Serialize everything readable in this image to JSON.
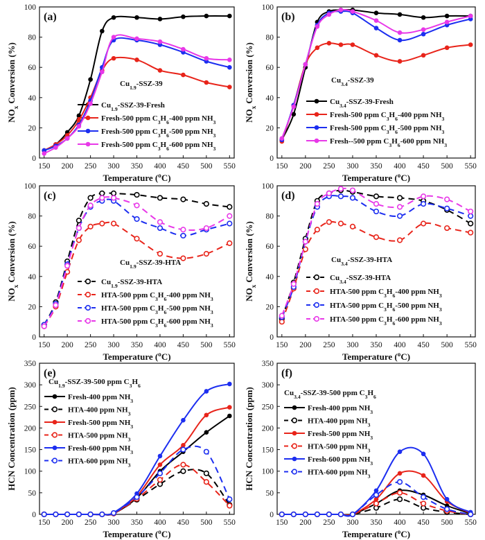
{
  "chart_data": [
    {
      "panel": "(a)",
      "type": "line",
      "annotation": "Cu1.9-SSZ-39",
      "xlabel": "Temperature (oC)",
      "ylabel": "NOx Conversion (%)",
      "xlim": [
        140,
        560
      ],
      "ylim": [
        0,
        100
      ],
      "xticks": [
        150,
        200,
        250,
        300,
        350,
        400,
        450,
        500,
        550
      ],
      "yticks": [
        0,
        20,
        40,
        60,
        80,
        100
      ],
      "legend_position": "bottom-right",
      "series": [
        {
          "name": "Cu1.9-SSZ-39-Fresh",
          "color": "#000000",
          "style": "solid",
          "x": [
            150,
            175,
            200,
            225,
            250,
            275,
            300,
            350,
            400,
            450,
            500,
            550
          ],
          "y": [
            5,
            9,
            17,
            28,
            52,
            84,
            93,
            93,
            92,
            93.5,
            94,
            94
          ]
        },
        {
          "name": "Fresh-500 ppm C3H6-400 ppm NH3",
          "color": "#e8241a",
          "style": "solid",
          "x": [
            150,
            175,
            200,
            225,
            250,
            275,
            300,
            350,
            400,
            450,
            500,
            550
          ],
          "y": [
            5,
            9,
            15,
            25,
            40,
            58,
            66,
            65,
            58,
            55,
            50,
            47
          ]
        },
        {
          "name": "Fresh-500 ppm C3H6-500 ppm NH3",
          "color": "#1c2ef0",
          "style": "solid",
          "x": [
            150,
            175,
            200,
            225,
            250,
            275,
            300,
            350,
            400,
            450,
            500,
            550
          ],
          "y": [
            5,
            8,
            13,
            22,
            38,
            60,
            78,
            78,
            75,
            70,
            64,
            60
          ]
        },
        {
          "name": "Fresh-500 ppm C3H6-600 ppm NH3",
          "color": "#e838e8",
          "style": "solid",
          "x": [
            150,
            175,
            200,
            225,
            250,
            275,
            300,
            350,
            400,
            450,
            500,
            550
          ],
          "y": [
            3,
            7,
            13,
            21,
            36,
            57,
            80,
            79,
            77,
            72,
            66,
            65
          ]
        }
      ]
    },
    {
      "panel": "(b)",
      "type": "line",
      "annotation": "Cu3.4-SSZ-39",
      "xlabel": "Temperature (oC)",
      "ylabel": "NOx Conversion (%)",
      "xlim": [
        140,
        560
      ],
      "ylim": [
        0,
        100
      ],
      "xticks": [
        150,
        200,
        250,
        300,
        350,
        400,
        450,
        500,
        550
      ],
      "yticks": [
        0,
        20,
        40,
        60,
        80,
        100
      ],
      "legend_position": "bottom-right",
      "series": [
        {
          "name": "Cu3.4-SSZ-39-Fresh",
          "color": "#000000",
          "style": "solid",
          "x": [
            150,
            175,
            200,
            225,
            250,
            275,
            300,
            350,
            400,
            450,
            500,
            550
          ],
          "y": [
            12,
            29,
            60,
            90,
            97,
            98,
            98,
            96,
            95,
            93,
            94,
            94
          ]
        },
        {
          "name": "Fresh-500 ppm C3H6-400 ppm NH3",
          "color": "#e8241a",
          "style": "solid",
          "x": [
            150,
            175,
            200,
            225,
            250,
            275,
            300,
            350,
            400,
            450,
            500,
            550
          ],
          "y": [
            11,
            35,
            62,
            73,
            76,
            75,
            75,
            68,
            64,
            68,
            73,
            75
          ]
        },
        {
          "name": "Fresh-500 ppm C3H6-500 ppm NH3",
          "color": "#1c2ef0",
          "style": "solid",
          "x": [
            150,
            175,
            200,
            225,
            250,
            275,
            300,
            350,
            400,
            450,
            500,
            550
          ],
          "y": [
            12,
            35,
            62,
            88,
            96,
            97,
            96,
            86,
            78,
            82,
            88,
            92
          ]
        },
        {
          "name": "Fresh--500 ppm C3H6-600 ppm NH3",
          "color": "#e838e8",
          "style": "solid",
          "x": [
            150,
            175,
            200,
            225,
            250,
            275,
            300,
            350,
            400,
            450,
            500,
            550
          ],
          "y": [
            13,
            34,
            62,
            87,
            95,
            98,
            97,
            91,
            83,
            85,
            90,
            94
          ]
        }
      ]
    },
    {
      "panel": "(c)",
      "type": "line",
      "annotation": "Cu1.9-SSZ-39-HTA",
      "xlabel": "Temperature (oC)",
      "ylabel": "NOx Conversion (%)",
      "xlim": [
        140,
        560
      ],
      "ylim": [
        0,
        100
      ],
      "xticks": [
        150,
        200,
        250,
        300,
        350,
        400,
        450,
        500,
        550
      ],
      "yticks": [
        0,
        20,
        40,
        60,
        80,
        100
      ],
      "legend_position": "bottom-right",
      "series": [
        {
          "name": "Cu1.9-SSZ-39-HTA",
          "color": "#000000",
          "style": "dashed",
          "x": [
            150,
            175,
            200,
            225,
            250,
            275,
            300,
            350,
            400,
            450,
            500,
            550
          ],
          "y": [
            8,
            23,
            50,
            77,
            92,
            95,
            95,
            94,
            92,
            91,
            88,
            86
          ]
        },
        {
          "name": "HTA-500 ppm C3H6-400 ppm NH3",
          "color": "#e8241a",
          "style": "dashed",
          "x": [
            150,
            175,
            200,
            225,
            250,
            275,
            300,
            350,
            400,
            450,
            500,
            550
          ],
          "y": [
            7,
            20,
            43,
            64,
            73,
            75,
            75,
            65,
            55,
            52,
            55,
            62
          ]
        },
        {
          "name": "HTA-500 ppm C3H6-500 ppm NH3",
          "color": "#1c2ef0",
          "style": "dashed",
          "x": [
            150,
            175,
            200,
            225,
            250,
            275,
            300,
            350,
            400,
            450,
            500,
            550
          ],
          "y": [
            8,
            22,
            48,
            72,
            86,
            90,
            90,
            78,
            72,
            67,
            71,
            75
          ]
        },
        {
          "name": "HTA-500 ppm C3H6-600 ppm NH3",
          "color": "#e838e8",
          "style": "dashed",
          "x": [
            150,
            175,
            200,
            225,
            250,
            275,
            300,
            350,
            400,
            450,
            500,
            550
          ],
          "y": [
            7,
            21,
            47,
            72,
            87,
            92,
            92,
            87,
            76,
            71,
            72,
            80
          ]
        }
      ]
    },
    {
      "panel": "(d)",
      "type": "line",
      "annotation": "Cu3.4-SSZ-39-HTA",
      "xlabel": "Temperature (oC)",
      "ylabel": "NOx Conversion (%)",
      "xlim": [
        140,
        560
      ],
      "ylim": [
        0,
        100
      ],
      "xticks": [
        150,
        200,
        250,
        300,
        350,
        400,
        450,
        500,
        550
      ],
      "yticks": [
        0,
        20,
        40,
        60,
        80,
        100
      ],
      "legend_position": "bottom-right",
      "series": [
        {
          "name": "Cu3.4-SSZ-39-HTA",
          "color": "#000000",
          "style": "dashed",
          "x": [
            150,
            175,
            200,
            225,
            250,
            275,
            300,
            350,
            400,
            450,
            500,
            550
          ],
          "y": [
            12,
            36,
            65,
            90,
            95,
            97,
            96,
            93,
            92,
            90,
            84,
            75
          ]
        },
        {
          "name": "HTA-500 ppm C3H6-400 ppm NH3",
          "color": "#e8241a",
          "style": "dashed",
          "x": [
            150,
            175,
            200,
            225,
            250,
            275,
            300,
            350,
            400,
            450,
            500,
            550
          ],
          "y": [
            10,
            32,
            58,
            71,
            76,
            75,
            73,
            66,
            64,
            75,
            72,
            69
          ]
        },
        {
          "name": "HTA-500 ppm C3H6-500 ppm NH3",
          "color": "#1c2ef0",
          "style": "dashed",
          "x": [
            150,
            175,
            200,
            225,
            250,
            275,
            300,
            350,
            400,
            450,
            500,
            550
          ],
          "y": [
            13,
            33,
            63,
            86,
            93,
            93,
            92,
            83,
            80,
            88,
            85,
            80
          ]
        },
        {
          "name": "HTA-500 ppm C3H6-600 ppm NH3",
          "color": "#e838e8",
          "style": "dashed",
          "x": [
            150,
            175,
            200,
            225,
            250,
            275,
            300,
            350,
            400,
            450,
            500,
            550
          ],
          "y": [
            14,
            35,
            63,
            88,
            95,
            98,
            97,
            88,
            86,
            93,
            91,
            83
          ]
        }
      ]
    },
    {
      "panel": "(e)",
      "type": "line",
      "annotation": "Cu1.9-SSZ-39-500 ppm C3H6",
      "xlabel": "Temperature (oC)",
      "ylabel": "HCN Concentration (ppm)",
      "xlim": [
        140,
        560
      ],
      "ylim": [
        0,
        350
      ],
      "xticks": [
        150,
        200,
        250,
        300,
        350,
        400,
        450,
        500,
        550
      ],
      "yticks": [
        0,
        50,
        100,
        150,
        200,
        250,
        300,
        350
      ],
      "legend_position": "top-left",
      "series": [
        {
          "name": "Fresh-400 ppm NH3",
          "color": "#000000",
          "style": "solid",
          "x": [
            150,
            175,
            200,
            225,
            250,
            275,
            300,
            350,
            400,
            450,
            500,
            550
          ],
          "y": [
            0,
            0,
            0,
            0,
            0,
            0,
            2,
            38,
            100,
            145,
            190,
            228
          ]
        },
        {
          "name": "HTA-400 ppm NH3",
          "color": "#000000",
          "style": "dashed",
          "x": [
            150,
            175,
            200,
            225,
            250,
            275,
            300,
            350,
            400,
            450,
            500,
            550
          ],
          "y": [
            0,
            0,
            0,
            0,
            0,
            0,
            2,
            34,
            70,
            100,
            95,
            22
          ]
        },
        {
          "name": "Fresh-500 ppm NH3",
          "color": "#e8241a",
          "style": "solid",
          "x": [
            150,
            175,
            200,
            225,
            250,
            275,
            300,
            350,
            400,
            450,
            500,
            550
          ],
          "y": [
            0,
            0,
            0,
            0,
            0,
            0,
            3,
            42,
            115,
            160,
            230,
            248
          ]
        },
        {
          "name": "HTA-500 ppm NH3",
          "color": "#e8241a",
          "style": "dashed",
          "x": [
            150,
            175,
            200,
            225,
            250,
            275,
            300,
            350,
            400,
            450,
            500,
            550
          ],
          "y": [
            0,
            0,
            0,
            0,
            0,
            0,
            2,
            36,
            80,
            115,
            75,
            20
          ]
        },
        {
          "name": "Fresh-600 ppm NH3",
          "color": "#1c2ef0",
          "style": "solid",
          "x": [
            150,
            175,
            200,
            225,
            250,
            275,
            300,
            350,
            400,
            450,
            500,
            550
          ],
          "y": [
            0,
            0,
            0,
            0,
            0,
            0,
            4,
            48,
            135,
            218,
            285,
            302
          ]
        },
        {
          "name": "HTA-600 ppm NH3",
          "color": "#1c2ef0",
          "style": "dashed",
          "x": [
            150,
            175,
            200,
            225,
            250,
            275,
            300,
            350,
            400,
            450,
            500,
            550
          ],
          "y": [
            0,
            0,
            0,
            0,
            0,
            0,
            3,
            40,
            95,
            150,
            145,
            35
          ]
        }
      ]
    },
    {
      "panel": "(f)",
      "type": "line",
      "annotation": "Cu3.4-SSZ-39-500 ppm C3H6",
      "xlabel": "Temperature (oC)",
      "ylabel": "HCN Concentration (ppm)",
      "xlim": [
        140,
        560
      ],
      "ylim": [
        0,
        350
      ],
      "xticks": [
        150,
        200,
        250,
        300,
        350,
        400,
        450,
        500,
        550
      ],
      "yticks": [
        0,
        50,
        100,
        150,
        200,
        250,
        300,
        350
      ],
      "legend_position": "top-left",
      "series": [
        {
          "name": "Fresh-400 ppm NH3",
          "color": "#000000",
          "style": "solid",
          "x": [
            150,
            175,
            200,
            225,
            250,
            275,
            300,
            350,
            400,
            450,
            500,
            550
          ],
          "y": [
            0,
            0,
            0,
            0,
            0,
            0,
            0,
            25,
            55,
            45,
            20,
            2
          ]
        },
        {
          "name": "HTA-400 ppm NH3",
          "color": "#000000",
          "style": "dashed",
          "x": [
            150,
            175,
            200,
            225,
            250,
            275,
            300,
            350,
            400,
            450,
            500,
            550
          ],
          "y": [
            0,
            0,
            0,
            0,
            0,
            0,
            0,
            15,
            35,
            15,
            5,
            0
          ]
        },
        {
          "name": "Fresh-500 ppm NH3",
          "color": "#e8241a",
          "style": "solid",
          "x": [
            150,
            175,
            200,
            225,
            250,
            275,
            300,
            350,
            400,
            450,
            500,
            550
          ],
          "y": [
            0,
            0,
            0,
            0,
            0,
            0,
            0,
            35,
            95,
            90,
            30,
            3
          ]
        },
        {
          "name": "HTA-500 ppm NH3",
          "color": "#e8241a",
          "style": "dashed",
          "x": [
            150,
            175,
            200,
            225,
            250,
            275,
            300,
            350,
            400,
            450,
            500,
            550
          ],
          "y": [
            0,
            0,
            0,
            0,
            0,
            0,
            0,
            25,
            50,
            25,
            8,
            0
          ]
        },
        {
          "name": "Fresh-600 ppm NH3",
          "color": "#1c2ef0",
          "style": "solid",
          "x": [
            150,
            175,
            200,
            225,
            250,
            275,
            300,
            350,
            400,
            450,
            500,
            550
          ],
          "y": [
            0,
            0,
            0,
            0,
            0,
            0,
            0,
            55,
            145,
            140,
            35,
            5
          ]
        },
        {
          "name": "HTA-600 ppm NH3",
          "color": "#1c2ef0",
          "style": "dashed",
          "x": [
            150,
            175,
            200,
            225,
            250,
            275,
            300,
            350,
            400,
            450,
            500,
            550
          ],
          "y": [
            0,
            0,
            0,
            0,
            0,
            0,
            0,
            45,
            75,
            40,
            12,
            0
          ]
        }
      ]
    }
  ]
}
